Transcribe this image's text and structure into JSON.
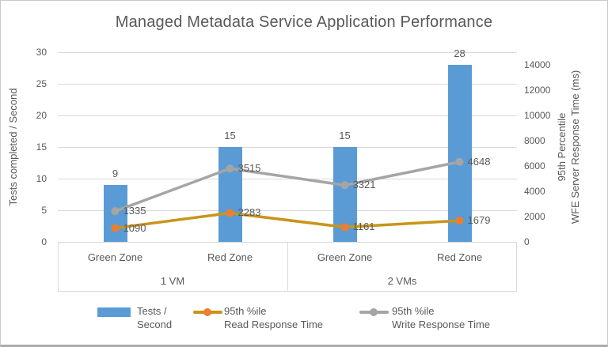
{
  "title": "Managed Metadata Service Application Performance",
  "colors": {
    "bar": "#5b9bd5",
    "read_line": "#c9941a",
    "read_marker": "#ed7d31",
    "write_line": "#a5a5a5",
    "write_marker": "#a5a5a5",
    "grid": "#d9d9d9",
    "axis_text": "#595959"
  },
  "chart_data": {
    "type": "combo",
    "categories": [
      "Green Zone",
      "Red Zone",
      "Green Zone",
      "Red Zone"
    ],
    "category_groups": [
      {
        "label": "1 VM",
        "span": 2
      },
      {
        "label": "2 VMs",
        "span": 2
      }
    ],
    "bar_series": {
      "name": "Tests / Second",
      "axis": "left",
      "values": [
        9,
        15,
        15,
        28
      ]
    },
    "line_series": {
      "stacked": true,
      "axis": "right",
      "series": [
        {
          "name": "95th %ile Read Response Time",
          "values": [
            1090,
            2283,
            1161,
            1679
          ]
        },
        {
          "name": "95th %ile Write Response Time",
          "values": [
            1335,
            3515,
            3321,
            4648
          ]
        }
      ]
    },
    "left_axis": {
      "title": "Tests completed / Second",
      "min": 0,
      "max": 30,
      "ticks": [
        0,
        5,
        10,
        15,
        20,
        25,
        30
      ]
    },
    "right_axis": {
      "title_lines": [
        "95th Percentile",
        "WFE Server Response Time (ms)"
      ],
      "min": 0,
      "max": 15000,
      "ticks": [
        0,
        2000,
        4000,
        6000,
        8000,
        10000,
        12000,
        14000
      ]
    },
    "gridlines": true,
    "legend_position": "bottom",
    "legend": [
      {
        "swatch": "bar",
        "lines": [
          "Tests /",
          "Second"
        ]
      },
      {
        "swatch": "line-marker",
        "lines": [
          "95th %ile",
          "Read Response Time"
        ]
      },
      {
        "swatch": "line-marker",
        "lines": [
          "95th %ile",
          "Write Response Time"
        ]
      }
    ]
  }
}
